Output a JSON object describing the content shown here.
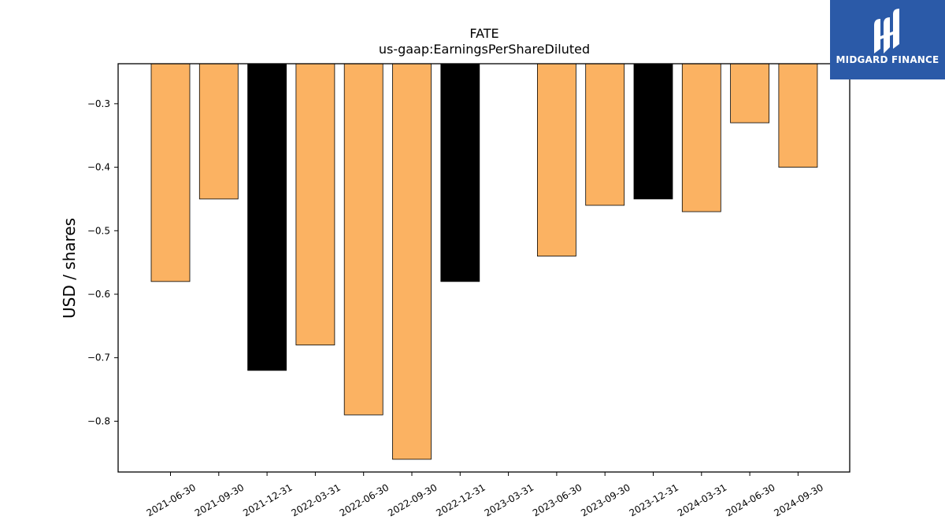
{
  "chart_data": {
    "type": "bar",
    "title": "FATE",
    "subtitle": "us-gaap:EarningsPerShareDiluted",
    "xlabel": "",
    "ylabel": "USD / shares",
    "categories": [
      "2021-06-30",
      "2021-09-30",
      "2021-12-31",
      "2022-03-31",
      "2022-06-30",
      "2022-09-30",
      "2022-12-31",
      "2023-03-31",
      "2023-06-30",
      "2023-09-30",
      "2023-12-31",
      "2024-03-31",
      "2024-06-30",
      "2024-09-30"
    ],
    "values": [
      -0.58,
      -0.45,
      -0.72,
      -0.68,
      -0.79,
      -0.86,
      -0.58,
      null,
      -0.54,
      -0.46,
      -0.45,
      -0.47,
      -0.33,
      -0.4
    ],
    "bar_colors": [
      "#fbb262",
      "#fbb262",
      "#000000",
      "#fbb262",
      "#fbb262",
      "#fbb262",
      "#000000",
      "#fbb262",
      "#fbb262",
      "#fbb262",
      "#000000",
      "#fbb262",
      "#fbb262",
      "#fbb262"
    ],
    "ylim": [
      -0.88,
      -0.237
    ],
    "yticks": [
      -0.3,
      -0.4,
      -0.5,
      -0.6,
      -0.7,
      -0.8
    ],
    "ytick_labels": [
      "−0.3",
      "−0.4",
      "−0.5",
      "−0.6",
      "−0.7",
      "−0.8"
    ],
    "grid": false,
    "legend": "none"
  },
  "logo": {
    "text": "MIDGARD FINANCE",
    "background": "#2b5aa8"
  }
}
